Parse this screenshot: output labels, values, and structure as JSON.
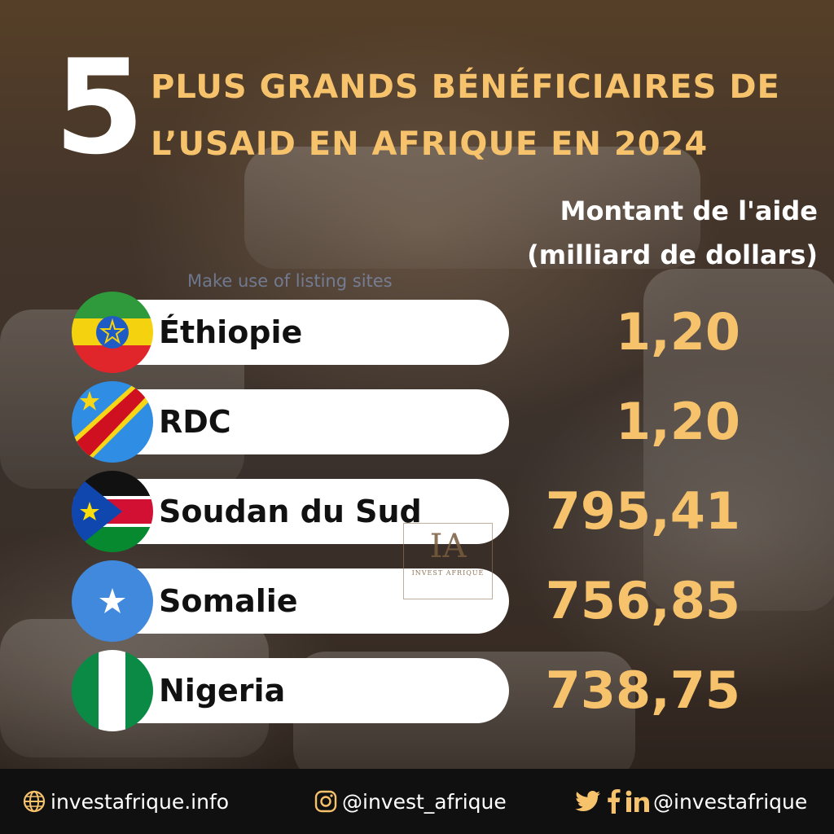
{
  "title": {
    "number": "5",
    "line1": "PLUS GRANDS BÉNÉFICIAIRES DE",
    "line2": "L’USAID EN AFRIQUE EN 2024"
  },
  "amount_header": {
    "line1": "Montant de l'aide",
    "line2": "(milliard de dollars)"
  },
  "overlay_text": "Make use of listing sites",
  "rows": [
    {
      "country": "Éthiopie",
      "value": "1,20",
      "flag_icon": "ethiopia-flag-icon"
    },
    {
      "country": "RDC",
      "value": "1,20",
      "flag_icon": "dr-congo-flag-icon"
    },
    {
      "country": "Soudan du Sud",
      "value": "795,41",
      "flag_icon": "south-sudan-flag-icon"
    },
    {
      "country": "Somalie",
      "value": "756,85",
      "flag_icon": "somalia-flag-icon"
    },
    {
      "country": "Nigeria",
      "value": "738,75",
      "flag_icon": "nigeria-flag-icon"
    }
  ],
  "logo": {
    "mark": "IA",
    "subtitle": "INVEST AFRIQUE"
  },
  "footer": {
    "website": "investafrique.info",
    "instagram": "@invest_afrique",
    "social": "@investafrique",
    "icons": [
      "globe-icon",
      "instagram-icon",
      "twitter-icon",
      "facebook-icon",
      "linkedin-icon"
    ]
  },
  "colors": {
    "accent": "#f6c26b",
    "pill": "#ffffff",
    "footer_bg": "#101010"
  }
}
